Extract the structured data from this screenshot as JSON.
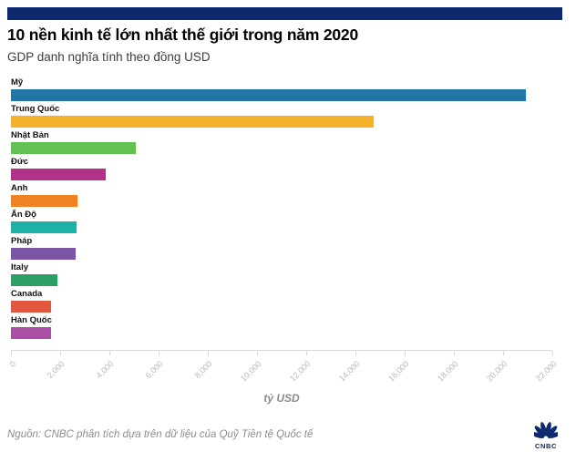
{
  "page": {
    "source": "Nguồn: CNBC phân tích dựa trên dữ liệu của Quỹ Tiền tệ Quốc tế",
    "brand": "CNBC",
    "accent_color": "#0c2a6d"
  },
  "chart_data": {
    "type": "bar",
    "orientation": "horizontal",
    "title": "10 nền kinh tế lớn nhất thế giới trong năm 2020",
    "subtitle": "GDP danh nghĩa tính theo đồng USD",
    "xlabel": "tỷ USD",
    "unit": "tỷ USD (billions USD)",
    "xlim": [
      0,
      22000
    ],
    "grid": false,
    "legend": false,
    "x_ticks": [
      0,
      2000,
      4000,
      6000,
      8000,
      10000,
      12000,
      14000,
      16000,
      18000,
      20000,
      22000
    ],
    "x_tick_labels": [
      "0",
      "2,000",
      "4,000",
      "6,000",
      "8,000",
      "10,000",
      "12,000",
      "14,000",
      "16,000",
      "18,000",
      "20,000",
      "22,000"
    ],
    "categories": [
      "Mỹ",
      "Trung Quốc",
      "Nhật Bản",
      "Đức",
      "Anh",
      "Ấn Độ",
      "Pháp",
      "Italy",
      "Canada",
      "Hàn Quốc"
    ],
    "values": [
      20937,
      14723,
      5065,
      3846,
      2710,
      2660,
      2630,
      1886,
      1644,
      1631
    ],
    "bar_colors": [
      "#2176a5",
      "#f3b229",
      "#63c052",
      "#b03387",
      "#ef8323",
      "#1db1a8",
      "#7a55a5",
      "#2d9e64",
      "#e25740",
      "#a94fa5"
    ],
    "axis_color": "#d9d9d9",
    "tick_label_color": "#b9b9b9"
  }
}
